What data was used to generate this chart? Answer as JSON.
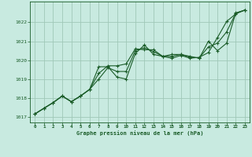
{
  "title": "Graphe pression niveau de la mer (hPa)",
  "background_color": "#c8eae0",
  "grid_color": "#a0c8b8",
  "line_color": "#1a5c28",
  "xlim": [
    -0.5,
    23.5
  ],
  "ylim": [
    1016.7,
    1023.1
  ],
  "yticks": [
    1017,
    1018,
    1019,
    1020,
    1021,
    1022
  ],
  "xticks": [
    0,
    1,
    2,
    3,
    4,
    5,
    6,
    7,
    8,
    9,
    10,
    11,
    12,
    13,
    14,
    15,
    16,
    17,
    18,
    19,
    20,
    21,
    22,
    23
  ],
  "series": [
    [
      1017.15,
      1017.45,
      1017.75,
      1018.1,
      1017.8,
      1018.1,
      1018.45,
      1019.65,
      1019.65,
      1019.1,
      1019.0,
      1020.35,
      1020.8,
      1020.3,
      1020.2,
      1020.1,
      1020.25,
      1020.1,
      1020.15,
      1020.4,
      1021.2,
      1022.05,
      1022.45,
      1022.65
    ],
    [
      1017.15,
      1017.45,
      1017.75,
      1018.1,
      1017.8,
      1018.1,
      1018.45,
      1019.3,
      1019.7,
      1019.7,
      1019.8,
      1020.6,
      1020.55,
      1020.55,
      1020.2,
      1020.3,
      1020.3,
      1020.2,
      1020.1,
      1021.0,
      1020.5,
      1020.9,
      1022.5,
      1022.65
    ],
    [
      1017.15,
      1017.45,
      1017.75,
      1018.1,
      1017.8,
      1018.1,
      1018.45,
      1019.0,
      1019.6,
      1019.4,
      1019.4,
      1020.5,
      1020.65,
      1020.45,
      1020.2,
      1020.2,
      1020.3,
      1020.15,
      1020.12,
      1020.7,
      1020.9,
      1021.5,
      1022.48,
      1022.65
    ]
  ]
}
